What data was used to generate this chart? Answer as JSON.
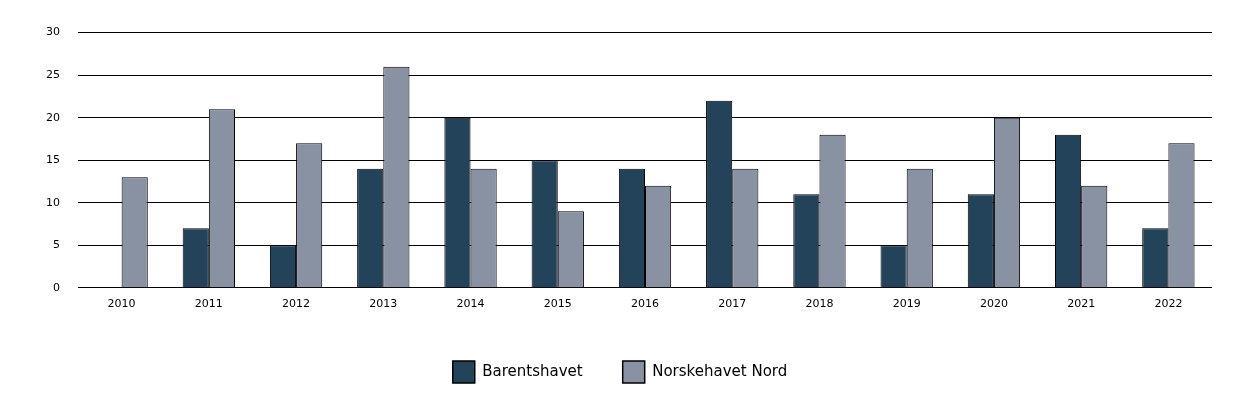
{
  "chart_data": {
    "type": "bar",
    "categories": [
      "2010",
      "2011",
      "2012",
      "2013",
      "2014",
      "2015",
      "2016",
      "2017",
      "2018",
      "2019",
      "2020",
      "2021",
      "2022"
    ],
    "series": [
      {
        "name": "Barentshavet",
        "color": "#23435a",
        "values": [
          0,
          7,
          5,
          14,
          20,
          15,
          14,
          22,
          11,
          5,
          11,
          18,
          7
        ]
      },
      {
        "name": "Norskehavet Nord",
        "color": "#8892a3",
        "values": [
          13,
          21,
          17,
          26,
          14,
          9,
          12,
          14,
          18,
          14,
          20,
          12,
          17
        ]
      }
    ],
    "ylim": [
      0,
      30
    ],
    "yticks": [
      0,
      5,
      10,
      15,
      20,
      25,
      30
    ],
    "grid": "y",
    "legend": "bottom"
  }
}
